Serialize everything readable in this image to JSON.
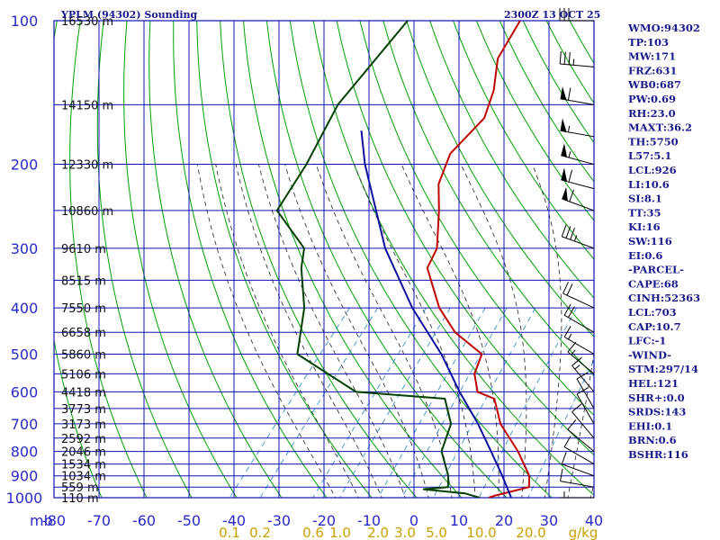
{
  "header": {
    "station_title": "YPLM (94302) Sounding",
    "valid_time": "2300Z 13 OCT 25"
  },
  "chart_data": {
    "type": "skew-t",
    "title": "YPLM (94302) Sounding",
    "pressure_unit_label": "mb",
    "mixing_ratio_unit_label": "g/kg",
    "pressure_ticks": [
      100,
      200,
      300,
      400,
      500,
      600,
      700,
      800,
      900,
      1000
    ],
    "temperature_ticks": [
      -80,
      -70,
      -60,
      -50,
      -40,
      -30,
      -20,
      -10,
      0,
      10,
      20,
      30,
      40
    ],
    "temperature_tick_labels": [
      "-80",
      "-70",
      "-60",
      "-50",
      "-40",
      "-30",
      "-20",
      "-10",
      "0",
      "10",
      "20",
      "30",
      "40"
    ],
    "mixing_ratio_ticks": [
      {
        "label": "0.1",
        "value": 0.1
      },
      {
        "label": "0.2",
        "value": 0.2
      },
      {
        "label": "0.6",
        "value": 0.6
      },
      {
        "label": "1.0",
        "value": 1.0
      },
      {
        "label": "2.0",
        "value": 2.0
      },
      {
        "label": "3.0",
        "value": 3.0
      },
      {
        "label": "5.0",
        "value": 5.0
      },
      {
        "label": "10.0",
        "value": 10.0
      },
      {
        "label": "20.0",
        "value": 20.0
      }
    ],
    "height_labels": [
      {
        "p": 100,
        "label": "16530 m"
      },
      {
        "p": 150,
        "label": "14150 m"
      },
      {
        "p": 200,
        "label": "12330 m"
      },
      {
        "p": 250,
        "label": "10860 m"
      },
      {
        "p": 300,
        "label": "9610 m"
      },
      {
        "p": 350,
        "label": "8515 m"
      },
      {
        "p": 400,
        "label": "7550 m"
      },
      {
        "p": 450,
        "label": "6658 m"
      },
      {
        "p": 500,
        "label": "5860 m"
      },
      {
        "p": 550,
        "label": "5106 m"
      },
      {
        "p": 600,
        "label": "4418 m"
      },
      {
        "p": 650,
        "label": "3773 m"
      },
      {
        "p": 700,
        "label": "3173 m"
      },
      {
        "p": 750,
        "label": "2592 m"
      },
      {
        "p": 800,
        "label": "2046 m"
      },
      {
        "p": 850,
        "label": "1534 m"
      },
      {
        "p": 900,
        "label": "1034 m"
      },
      {
        "p": 950,
        "label": "559 m"
      },
      {
        "p": 1000,
        "label": "110 m"
      }
    ],
    "series": [
      {
        "name": "Temperature",
        "color": "#c00000",
        "points": [
          {
            "p": 100,
            "t": -65
          },
          {
            "p": 120,
            "t": -63
          },
          {
            "p": 140,
            "t": -58
          },
          {
            "p": 160,
            "t": -55
          },
          {
            "p": 190,
            "t": -56
          },
          {
            "p": 220,
            "t": -53
          },
          {
            "p": 250,
            "t": -48
          },
          {
            "p": 300,
            "t": -41.5
          },
          {
            "p": 330,
            "t": -40
          },
          {
            "p": 400,
            "t": -30
          },
          {
            "p": 450,
            "t": -22
          },
          {
            "p": 500,
            "t": -12
          },
          {
            "p": 550,
            "t": -10
          },
          {
            "p": 600,
            "t": -6
          },
          {
            "p": 620,
            "t": -1
          },
          {
            "p": 700,
            "t": 5
          },
          {
            "p": 800,
            "t": 14
          },
          {
            "p": 900,
            "t": 21
          },
          {
            "p": 950,
            "t": 23
          },
          {
            "p": 970,
            "t": 20
          },
          {
            "p": 990,
            "t": 17
          },
          {
            "p": 1000,
            "t": 16
          }
        ]
      },
      {
        "name": "Dewpoint",
        "color": "#004000",
        "points": [
          {
            "p": 100,
            "t": -90
          },
          {
            "p": 150,
            "t": -90
          },
          {
            "p": 200,
            "t": -86
          },
          {
            "p": 250,
            "t": -84
          },
          {
            "p": 300,
            "t": -71
          },
          {
            "p": 330,
            "t": -68
          },
          {
            "p": 400,
            "t": -60
          },
          {
            "p": 500,
            "t": -53
          },
          {
            "p": 600,
            "t": -33
          },
          {
            "p": 620,
            "t": -12
          },
          {
            "p": 700,
            "t": -6
          },
          {
            "p": 800,
            "t": -3
          },
          {
            "p": 900,
            "t": 3
          },
          {
            "p": 950,
            "t": 5
          },
          {
            "p": 960,
            "t": 0
          },
          {
            "p": 980,
            "t": 10
          },
          {
            "p": 1000,
            "t": 14
          }
        ]
      },
      {
        "name": "Parcel",
        "color": "#1010a0",
        "points": [
          {
            "p": 170,
            "t": -80
          },
          {
            "p": 200,
            "t": -73
          },
          {
            "p": 300,
            "t": -53
          },
          {
            "p": 400,
            "t": -36
          },
          {
            "p": 500,
            "t": -21
          },
          {
            "p": 600,
            "t": -10
          },
          {
            "p": 700,
            "t": 0
          },
          {
            "p": 800,
            "t": 8
          },
          {
            "p": 900,
            "t": 15
          },
          {
            "p": 1000,
            "t": 21
          }
        ]
      }
    ],
    "wind_barbs": [
      {
        "p": 100,
        "dir": 270,
        "kt": 30
      },
      {
        "p": 125,
        "dir": 275,
        "kt": 35
      },
      {
        "p": 150,
        "dir": 280,
        "kt": 60
      },
      {
        "p": 175,
        "dir": 280,
        "kt": 55
      },
      {
        "p": 200,
        "dir": 285,
        "kt": 55
      },
      {
        "p": 225,
        "dir": 285,
        "kt": 60
      },
      {
        "p": 250,
        "dir": 290,
        "kt": 60
      },
      {
        "p": 300,
        "dir": 290,
        "kt": 35
      },
      {
        "p": 400,
        "dir": 295,
        "kt": 20
      },
      {
        "p": 450,
        "dir": 300,
        "kt": 20
      },
      {
        "p": 500,
        "dir": 300,
        "kt": 15
      },
      {
        "p": 550,
        "dir": 310,
        "kt": 15
      },
      {
        "p": 600,
        "dir": 320,
        "kt": 15
      },
      {
        "p": 650,
        "dir": 330,
        "kt": 10
      },
      {
        "p": 700,
        "dir": 330,
        "kt": 10
      },
      {
        "p": 750,
        "dir": 320,
        "kt": 10
      },
      {
        "p": 800,
        "dir": 310,
        "kt": 10
      },
      {
        "p": 850,
        "dir": 300,
        "kt": 10
      },
      {
        "p": 900,
        "dir": 290,
        "kt": 10
      },
      {
        "p": 950,
        "dir": 280,
        "kt": 10
      },
      {
        "p": 1000,
        "dir": 270,
        "kt": 5
      }
    ]
  },
  "indices": [
    "WMO:94302",
    "TP:103",
    "MW:171",
    "FRZ:631",
    "WB0:687",
    "PW:0.69",
    "RH:23.0",
    "MAXT:36.2",
    "TH:5750",
    "L57:5.1",
    "LCL:926",
    "LI:10.6",
    "SI:8.1",
    "TT:35",
    "KI:16",
    "SW:116",
    "EI:0.6",
    "-PARCEL-",
    "CAPE:68",
    "CINH:52363",
    "LCL:703",
    "CAP:10.7",
    "LFC:-1",
    "-WIND-",
    "STM:297/14",
    "HEL:121",
    "SHR+:0.0",
    "SRDS:143",
    "EHI:0.1",
    "BRN:0.6",
    "BSHR:116"
  ],
  "colors": {
    "grid": "#1010b0",
    "dry_adiabat": "#00a000",
    "moist_adiabat": "#222222",
    "mixing_ratio": "#3a90d0",
    "temperature": "#c00000",
    "dewpoint": "#004000",
    "parcel": "#1010a0"
  }
}
